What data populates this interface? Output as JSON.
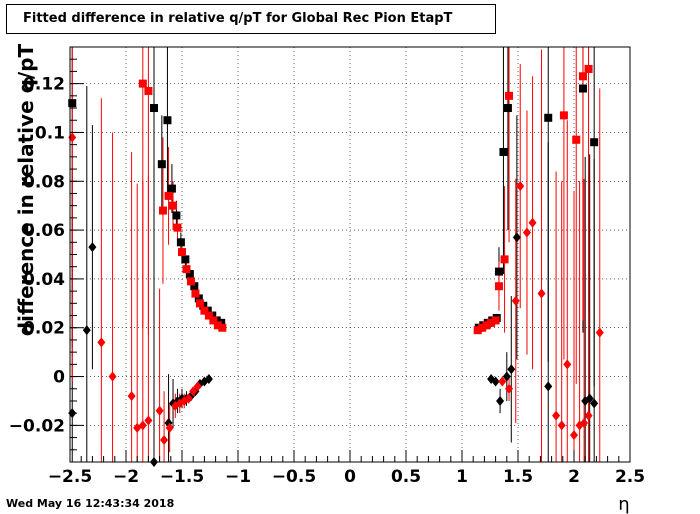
{
  "title": "Fitted difference in relative q/pT for Global Rec Pion EtapT",
  "timestamp": "Wed May 16 12:43:34 2018",
  "chart_data": {
    "type": "scatter",
    "title": "Fitted difference in relative q/pT for Global Rec Pion EtapT",
    "xlabel": "η",
    "ylabel": "difference in relative q/pT",
    "xlim": [
      -2.5,
      2.5
    ],
    "ylim": [
      -0.035,
      0.135
    ],
    "grid": true,
    "x_ticks": [
      -2.5,
      -2,
      -1.5,
      -1,
      -0.5,
      0,
      0.5,
      1,
      1.5,
      2,
      2.5
    ],
    "x_tick_labels": [
      "−2.5",
      "−2",
      "−1.5",
      "−1",
      "−0.5",
      "0",
      "0.5",
      "1",
      "1.5",
      "2",
      "2.5"
    ],
    "y_ticks": [
      -0.02,
      0,
      0.02,
      0.04,
      0.06,
      0.08,
      0.1,
      0.12
    ],
    "y_tick_labels": [
      "−0.02",
      "0",
      "0.02",
      "0.04",
      "0.06",
      "0.08",
      "0.1",
      "0.12"
    ],
    "series": [
      {
        "marker": "square",
        "color": "#000000",
        "points": [
          [
            -2.48,
            0.112,
            0.1
          ],
          [
            -1.75,
            0.11,
            0.1
          ],
          [
            -1.68,
            0.087,
            0.02
          ],
          [
            -1.63,
            0.105,
            0.03
          ],
          [
            -1.59,
            0.077,
            0.01
          ],
          [
            -1.55,
            0.066,
            0.006
          ],
          [
            -1.51,
            0.055,
            0.004
          ],
          [
            -1.47,
            0.048,
            0.003
          ],
          [
            -1.43,
            0.042,
            0.002
          ],
          [
            -1.39,
            0.037,
            0.002
          ],
          [
            -1.35,
            0.032,
            0.001
          ],
          [
            -1.31,
            0.029,
            0.001
          ],
          [
            -1.27,
            0.027,
            0.001
          ],
          [
            -1.23,
            0.025,
            0.001
          ],
          [
            -1.19,
            0.023,
            0.0008
          ],
          [
            -1.15,
            0.022,
            0.0008
          ],
          [
            1.15,
            0.02,
            0.0008
          ],
          [
            1.19,
            0.021,
            0.0008
          ],
          [
            1.23,
            0.022,
            0.001
          ],
          [
            1.27,
            0.023,
            0.001
          ],
          [
            1.31,
            0.024,
            0.001
          ],
          [
            1.33,
            0.043,
            0.01
          ],
          [
            1.37,
            0.092,
            0.05
          ],
          [
            1.41,
            0.11,
            0.05
          ],
          [
            1.77,
            0.106,
            0.1
          ],
          [
            2.08,
            0.118,
            0.1
          ],
          [
            2.18,
            0.096,
            0.1
          ]
        ]
      },
      {
        "marker": "square",
        "color": "#ff0000",
        "points": [
          [
            -1.85,
            0.12,
            0.1
          ],
          [
            -1.8,
            0.117,
            0.1
          ],
          [
            -1.67,
            0.068,
            0.03
          ],
          [
            -1.62,
            0.074,
            0.02
          ],
          [
            -1.58,
            0.07,
            0.01
          ],
          [
            -1.54,
            0.061,
            0.006
          ],
          [
            -1.5,
            0.051,
            0.004
          ],
          [
            -1.46,
            0.044,
            0.003
          ],
          [
            -1.42,
            0.039,
            0.002
          ],
          [
            -1.38,
            0.034,
            0.002
          ],
          [
            -1.34,
            0.03,
            0.001
          ],
          [
            -1.3,
            0.027,
            0.001
          ],
          [
            -1.26,
            0.025,
            0.001
          ],
          [
            -1.22,
            0.023,
            0.001
          ],
          [
            -1.18,
            0.021,
            0.0008
          ],
          [
            -1.14,
            0.02,
            0.0008
          ],
          [
            1.14,
            0.019,
            0.0008
          ],
          [
            1.18,
            0.02,
            0.0008
          ],
          [
            1.22,
            0.021,
            0.001
          ],
          [
            1.26,
            0.022,
            0.001
          ],
          [
            1.3,
            0.023,
            0.001
          ],
          [
            1.33,
            0.037,
            0.01
          ],
          [
            1.38,
            0.048,
            0.03
          ],
          [
            1.42,
            0.115,
            0.06
          ],
          [
            1.91,
            0.107,
            0.1
          ],
          [
            2.02,
            0.097,
            0.1
          ],
          [
            2.08,
            0.123,
            0.1
          ],
          [
            2.13,
            0.126,
            0.1
          ]
        ]
      },
      {
        "marker": "diamond",
        "color": "#000000",
        "points": [
          [
            -2.48,
            -0.015,
            0.1
          ],
          [
            -2.35,
            0.019,
            0.1
          ],
          [
            -2.3,
            0.053,
            0.05
          ],
          [
            -1.75,
            -0.035,
            0.1
          ],
          [
            -1.62,
            -0.019,
            0.02
          ],
          [
            -1.58,
            -0.011,
            0.01
          ],
          [
            -1.54,
            -0.01,
            0.005
          ],
          [
            -1.5,
            -0.009,
            0.004
          ],
          [
            -1.46,
            -0.009,
            0.003
          ],
          [
            -1.42,
            -0.008,
            0.002
          ],
          [
            -1.38,
            -0.006,
            0.001
          ],
          [
            -1.34,
            -0.003,
            0.001
          ],
          [
            -1.3,
            -0.002,
            0.001
          ],
          [
            -1.26,
            -0.001,
            0.001
          ],
          [
            1.26,
            -0.001,
            0.001
          ],
          [
            1.3,
            -0.002,
            0.001
          ],
          [
            1.34,
            -0.01,
            0.005
          ],
          [
            1.4,
            0.0,
            0.01
          ],
          [
            1.44,
            0.003,
            0.03
          ],
          [
            1.49,
            0.057,
            0.05
          ],
          [
            1.77,
            -0.004,
            0.1
          ],
          [
            2.1,
            -0.01,
            0.1
          ],
          [
            2.14,
            -0.009,
            0.1
          ],
          [
            2.18,
            -0.011,
            0.1
          ]
        ]
      },
      {
        "marker": "diamond",
        "color": "#ff0000",
        "points": [
          [
            -2.48,
            0.098,
            0.1
          ],
          [
            -2.22,
            0.014,
            0.1
          ],
          [
            -2.12,
            0.0,
            0.1
          ],
          [
            -1.95,
            -0.008,
            0.1
          ],
          [
            -1.9,
            -0.021,
            0.1
          ],
          [
            -1.85,
            -0.02,
            0.1
          ],
          [
            -1.8,
            -0.018,
            0.1
          ],
          [
            -1.7,
            -0.014,
            0.05
          ],
          [
            -1.66,
            -0.026,
            0.02
          ],
          [
            -1.61,
            -0.021,
            0.01
          ],
          [
            -1.56,
            -0.012,
            0.005
          ],
          [
            -1.52,
            -0.011,
            0.004
          ],
          [
            -1.48,
            -0.01,
            0.003
          ],
          [
            -1.44,
            -0.009,
            0.002
          ],
          [
            -1.4,
            -0.006,
            0.001
          ],
          [
            -1.36,
            -0.004,
            0.001
          ],
          [
            1.36,
            -0.002,
            0.001
          ],
          [
            1.42,
            -0.005,
            0.005
          ],
          [
            1.48,
            0.031,
            0.05
          ],
          [
            1.52,
            0.078,
            0.05
          ],
          [
            1.58,
            0.059,
            0.05
          ],
          [
            1.63,
            0.063,
            0.06
          ],
          [
            1.71,
            0.034,
            0.1
          ],
          [
            1.84,
            -0.016,
            0.1
          ],
          [
            1.89,
            -0.02,
            0.1
          ],
          [
            1.94,
            0.005,
            0.1
          ],
          [
            2.0,
            -0.024,
            0.1
          ],
          [
            2.05,
            -0.02,
            0.1
          ],
          [
            2.09,
            -0.019,
            0.1
          ],
          [
            2.13,
            -0.016,
            0.1
          ],
          [
            2.23,
            0.018,
            0.1
          ]
        ]
      }
    ]
  }
}
